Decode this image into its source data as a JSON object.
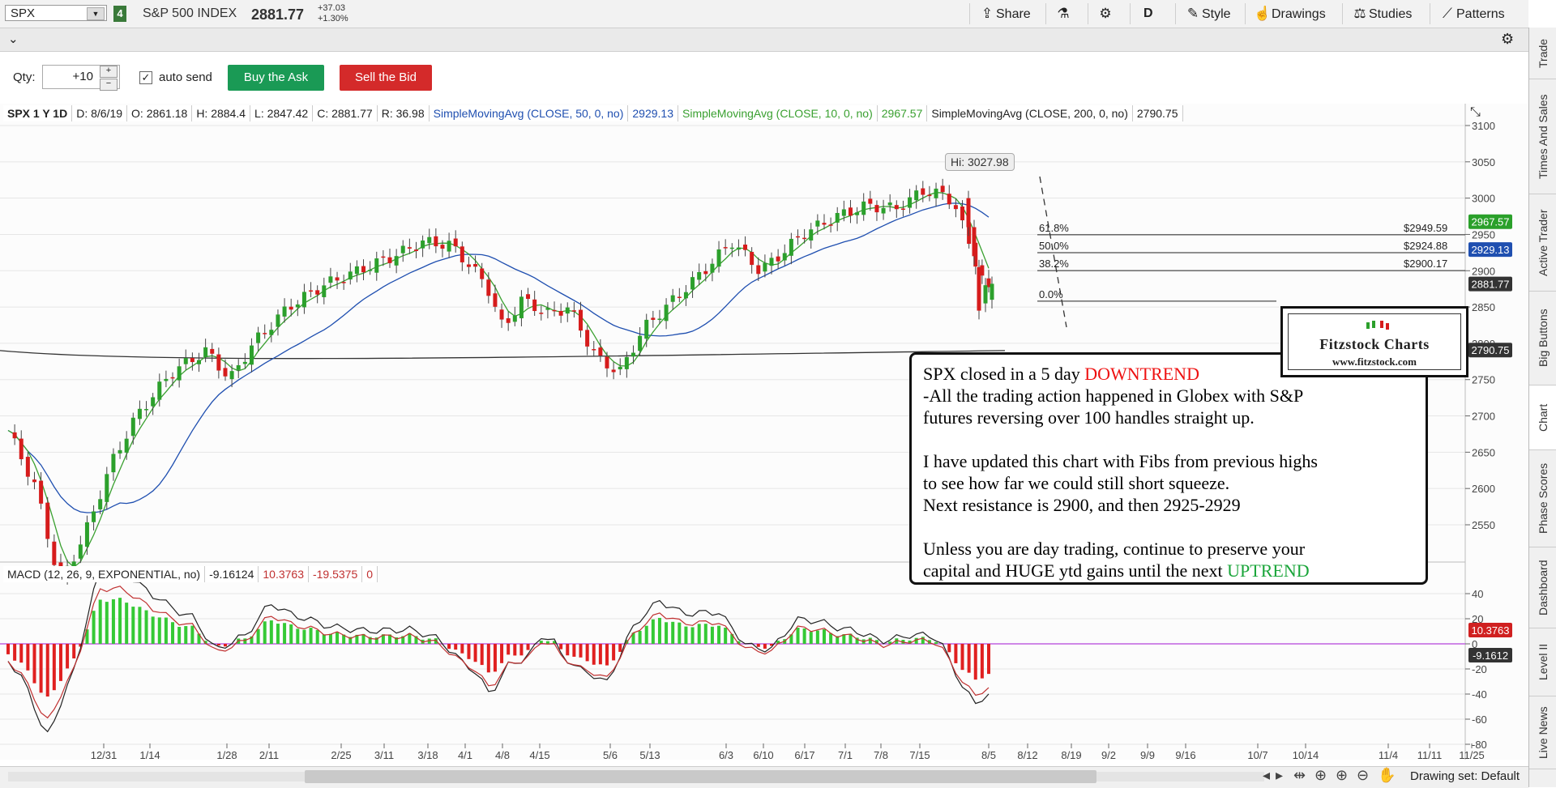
{
  "toolbar": {
    "symbol": "SPX",
    "link_number": "4",
    "description": "S&P 500 INDEX",
    "last_price": "2881.77",
    "net_change": "+37.03",
    "pct_change": "+1.30%",
    "share_label": "Share",
    "aggregation_label": "D",
    "style_label": "Style",
    "drawings_label": "Drawings",
    "studies_label": "Studies",
    "patterns_label": "Patterns"
  },
  "order": {
    "qty_label": "Qty:",
    "qty_value": "+10",
    "auto_send_label": "auto send",
    "buy_label": "Buy the Ask",
    "sell_label": "Sell the Bid"
  },
  "legend": {
    "symbol_period": "SPX 1 Y 1D",
    "date": "D: 8/6/19",
    "open": "O: 2861.18",
    "high": "H: 2884.4",
    "low": "L: 2847.42",
    "close": "C: 2881.77",
    "range": "R: 36.98",
    "sma50_label": "SimpleMovingAvg (CLOSE, 50, 0, no)",
    "sma50_value": "2929.13",
    "sma10_label": "SimpleMovingAvg (CLOSE, 10, 0, no)",
    "sma10_value": "2967.57",
    "sma200_label": "SimpleMovingAvg (CLOSE, 200, 0, no)",
    "sma200_value": "2790.75"
  },
  "macd_legend": {
    "label": "MACD (12, 26, 9, EXPONENTIAL, no)",
    "value": "-9.16124",
    "avg": "10.3763",
    "diff": "-19.5375",
    "zero": "0"
  },
  "chart": {
    "hi_label": "Hi: 3027.98",
    "fib_levels": [
      {
        "pct": "61.8%",
        "price": "$2949.59"
      },
      {
        "pct": "50.0%",
        "price": "$2924.88"
      },
      {
        "pct": "38.2%",
        "price": "$2900.17"
      },
      {
        "pct": "0.0%",
        "price": ""
      }
    ],
    "price_ticks": [
      "3100",
      "3050",
      "3000",
      "2950",
      "2900",
      "2850",
      "2800",
      "2750",
      "2700",
      "2650",
      "2600",
      "2550"
    ],
    "price_tags": [
      {
        "value": "2967.57",
        "color": "#2aa02a"
      },
      {
        "value": "2929.13",
        "color": "#1f4fb0"
      },
      {
        "value": "2881.77",
        "color": "#333333"
      },
      {
        "value": "2790.75",
        "color": "#333333"
      }
    ],
    "macd_ticks": [
      "40",
      "20",
      "0",
      "-20",
      "-40",
      "-60",
      "-80"
    ],
    "macd_tags": [
      {
        "value": "10.3763",
        "color": "#d02020"
      },
      {
        "value": "-9.1612",
        "color": "#333333"
      }
    ],
    "date_ticks": [
      "12/31",
      "1/14",
      "1/28",
      "2/11",
      "2/25",
      "3/11",
      "3/18",
      "4/1",
      "4/8",
      "4/15",
      "5/6",
      "5/13",
      "6/3",
      "6/10",
      "6/17",
      "7/1",
      "7/8",
      "7/15",
      "8/5",
      "8/12",
      "8/19",
      "9/2",
      "9/9",
      "9/16",
      "10/7",
      "10/14",
      "11/4",
      "11/11",
      "11/25"
    ]
  },
  "annotation": {
    "l1a": "SPX closed in a 5 day ",
    "l1b": "DOWNTREND",
    "l2": "-All the trading action happened in Globex with S&P",
    "l3": "futures reversing over 100 handles straight up.",
    "l4": "I have updated this chart with Fibs from previous highs",
    "l5": "to see how far we could still short squeeze.",
    "l6": "Next resistance is 2900, and then 2925-2929",
    "l7": "Unless you are day trading, continue to preserve your",
    "l8a": "capital and HUGE ytd gains until the next ",
    "l8b": "UPTREND"
  },
  "logo": {
    "title": "Fitzstock Charts",
    "url": "www.fitzstock.com"
  },
  "right_tabs": [
    "Trade",
    "Times And Sales",
    "Active Trader",
    "Big Buttons",
    "Chart",
    "Phase Scores",
    "Dashboard",
    "Level II",
    "Live News"
  ],
  "status": {
    "drawing_set": "Drawing set: Default"
  },
  "colors": {
    "up_candle": "#2ca02c",
    "down_candle": "#d61c1c",
    "sma10": "#3aa030",
    "sma50": "#1f4fb0",
    "sma200": "#333333",
    "buy": "#1a9a55",
    "sell": "#d42a2a"
  }
}
